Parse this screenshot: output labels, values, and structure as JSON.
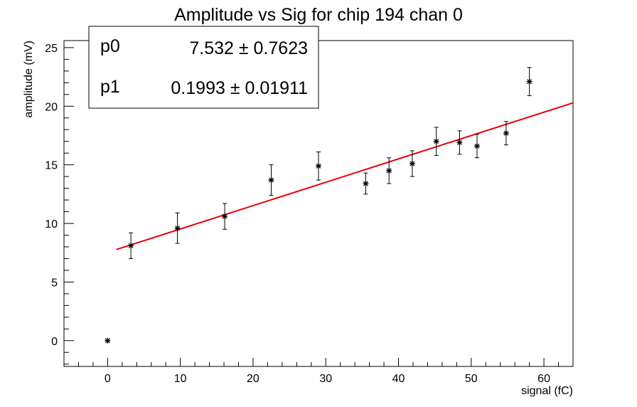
{
  "chart_data": {
    "type": "scatter",
    "title": "Amplitude vs Sig for chip 194 chan 0",
    "xlabel": "signal (fC)",
    "ylabel": "amplitude (mV)",
    "xlim": [
      -6,
      64
    ],
    "ylim": [
      -2.2,
      25.6
    ],
    "xticks": [
      0,
      10,
      20,
      30,
      40,
      50,
      60
    ],
    "yticks": [
      0,
      5,
      10,
      15,
      20,
      25
    ],
    "grid": false,
    "points": [
      {
        "x": 0.0,
        "y": 0.0,
        "err": 0.0
      },
      {
        "x": 3.2,
        "y": 8.1,
        "err": 1.1
      },
      {
        "x": 9.6,
        "y": 9.6,
        "err": 1.3
      },
      {
        "x": 16.1,
        "y": 10.6,
        "err": 1.1
      },
      {
        "x": 22.5,
        "y": 13.7,
        "err": 1.3
      },
      {
        "x": 29.0,
        "y": 14.9,
        "err": 1.2
      },
      {
        "x": 35.5,
        "y": 13.4,
        "err": 0.9
      },
      {
        "x": 38.7,
        "y": 14.5,
        "err": 1.1
      },
      {
        "x": 41.9,
        "y": 15.1,
        "err": 1.1
      },
      {
        "x": 45.2,
        "y": 17.0,
        "err": 1.2
      },
      {
        "x": 48.4,
        "y": 16.9,
        "err": 1.0
      },
      {
        "x": 50.8,
        "y": 16.6,
        "err": 1.0
      },
      {
        "x": 54.8,
        "y": 17.7,
        "err": 1.0
      },
      {
        "x": 58.0,
        "y": 22.1,
        "err": 1.2
      }
    ],
    "fit": {
      "x_range": [
        1.2,
        64
      ],
      "params": [
        {
          "name": "p0",
          "value": 7.532,
          "error": 0.7623,
          "label": "7.532 ± 0.7623"
        },
        {
          "name": "p1",
          "value": 0.1993,
          "error": 0.01911,
          "label": "0.1993 ± 0.01911"
        }
      ],
      "color": "#e8000b"
    },
    "stats_box": {
      "rows": [
        {
          "name": "p0",
          "text": "7.532 ± 0.7623"
        },
        {
          "name": "p1",
          "text": "0.1993 ± 0.01911"
        }
      ],
      "placement": "top-left"
    },
    "marker_color": "#000000"
  }
}
